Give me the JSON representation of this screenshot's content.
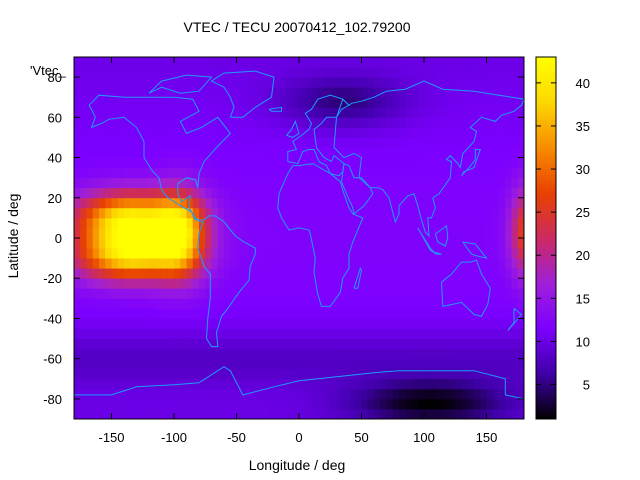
{
  "chart_data": {
    "type": "heatmap",
    "title": "VTEC / TECU 20070412_102.79200",
    "xlabel": "Longitude / deg",
    "ylabel": "Latitude / deg",
    "key_title": "'Vtec_",
    "xlim": [
      -180,
      180
    ],
    "ylim": [
      -90,
      90
    ],
    "x_ticks": [
      -150,
      -100,
      -50,
      0,
      50,
      100,
      150
    ],
    "y_ticks": [
      -80,
      -60,
      -40,
      -20,
      0,
      20,
      40,
      60,
      80
    ],
    "colorbar": {
      "range": [
        1,
        43
      ],
      "ticks": [
        5,
        10,
        15,
        20,
        25,
        30,
        35,
        40
      ],
      "palette": [
        "#000000",
        "#3f00a8",
        "#7c00ff",
        "#a020d8",
        "#cc2a60",
        "#e84200",
        "#f88c00",
        "#fcd800",
        "#ffff00"
      ]
    },
    "features": [
      {
        "name": "equatorial anomaly, Americas",
        "lon": -130,
        "lat": 0,
        "peak_vtec": 40
      },
      {
        "name": "equatorial anomaly, Pacific date line",
        "lon": 178,
        "lat": 0,
        "peak_vtec": 25
      },
      {
        "name": "southern high-latitude minimum",
        "lon": 105,
        "lat": -80,
        "peak_vtec": 1
      }
    ],
    "background_vtec": 10
  }
}
